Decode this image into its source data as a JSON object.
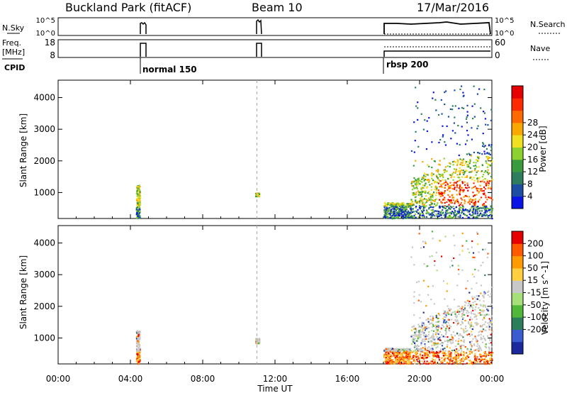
{
  "header": {
    "station": "Buckland Park (fitACF)",
    "beam": "Beam 10",
    "date": "17/Mar/2016"
  },
  "status_panels": {
    "nsky_label": "N.Sky",
    "nsky_ticks": [
      "10^5",
      "10^0"
    ],
    "nsearch_label": "N.Search",
    "nsearch_ticks": [
      "10^5",
      "10^0"
    ],
    "freq_label_top": "Freq.",
    "freq_label_unit": "[MHz]",
    "freq_ticks": [
      "18",
      "8"
    ],
    "nave_label": "Nave",
    "nave_ticks": [
      "60",
      "0"
    ],
    "cpid_label": "CPID",
    "cpid_entries": [
      {
        "label": "normal 150",
        "start_hour": 4.3
      },
      {
        "label": "rbsp 200",
        "start_hour": 18.0
      }
    ]
  },
  "chart_data": [
    {
      "type": "heatmap",
      "name": "power-panel",
      "ylabel": "Slant Range [km]",
      "xlabel": "",
      "x_ticks": [
        "00:00",
        "04:00",
        "08:00",
        "12:00",
        "16:00",
        "20:00",
        "00:00"
      ],
      "xlim": [
        0,
        24
      ],
      "y_ticks": [
        "1000",
        "2000",
        "3000",
        "4000"
      ],
      "ylim": [
        180,
        4550
      ],
      "colorbar": {
        "label": "Power [dB]",
        "ticks": [
          "4",
          "8",
          "12",
          "16",
          "20",
          "24",
          "28"
        ],
        "colors": [
          "#0b14e6",
          "#1d4ea3",
          "#2e7d5e",
          "#3a9a3e",
          "#8cd22e",
          "#f0e020",
          "#f8a800",
          "#ff6a00",
          "#ff2a00",
          "#e60000"
        ]
      },
      "series": [
        {
          "values": [
            {
              "t_start": 4.3,
              "t_end": 4.5,
              "r_min": 200,
              "r_max": 1250
            }
          ]
        },
        {
          "values": [
            {
              "t_start": 10.9,
              "t_end": 11.1,
              "r_min": 900,
              "r_max": 1000
            }
          ]
        },
        {
          "values": [
            {
              "t_start": 18.0,
              "t_end": 24.0,
              "r_min": 200,
              "r_max": 4400
            }
          ]
        }
      ]
    },
    {
      "type": "heatmap",
      "name": "velocity-panel",
      "ylabel": "Slant Range [km]",
      "xlabel": "Time UT",
      "x_ticks": [
        "00:00",
        "04:00",
        "08:00",
        "12:00",
        "16:00",
        "20:00",
        "00:00"
      ],
      "xlim": [
        0,
        24
      ],
      "y_ticks": [
        "1000",
        "2000",
        "3000",
        "4000"
      ],
      "ylim": [
        180,
        4550
      ],
      "colorbar": {
        "label": "Velocity [m s^-1]",
        "ticks": [
          "200",
          "100",
          "50",
          "15",
          "-15",
          "-50",
          "-100",
          "-200"
        ],
        "colors": [
          "#1a2a9c",
          "#3b5bd0",
          "#2c7e5a",
          "#50b838",
          "#a6e07a",
          "#c8c8c8",
          "#ffcf40",
          "#ff9a00",
          "#ff5a00",
          "#e60000"
        ]
      },
      "series": [
        {
          "values": [
            {
              "t_start": 4.3,
              "t_end": 4.5,
              "r_min": 200,
              "r_max": 1250
            }
          ]
        },
        {
          "values": [
            {
              "t_start": 10.9,
              "t_end": 11.1,
              "r_min": 850,
              "r_max": 1000
            }
          ]
        },
        {
          "values": [
            {
              "t_start": 18.0,
              "t_end": 24.0,
              "r_min": 200,
              "r_max": 4400
            }
          ]
        }
      ]
    }
  ]
}
